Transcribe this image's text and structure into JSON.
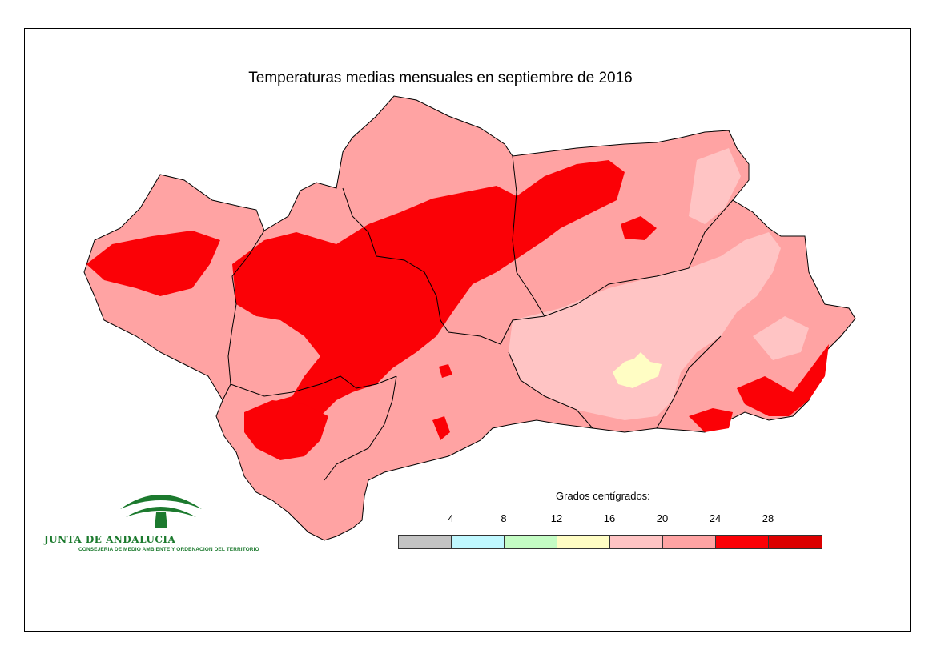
{
  "title": "Temperaturas medias mensuales en septiembre de 2016",
  "legend": {
    "title": "Grados centígrados:",
    "ticks": [
      "4",
      "8",
      "12",
      "16",
      "20",
      "24",
      "28"
    ],
    "colors": [
      "#c3c3c3",
      "#c0f8ff",
      "#c4fcc4",
      "#fffdc4",
      "#ffc4c4",
      "#ffa3a3",
      "#fb0106",
      "#dc0000"
    ]
  },
  "logo": {
    "name": "JUNTA DE ANDALUCIA",
    "subtitle": "CONSEJERIA DE MEDIO AMBIENTE Y ORDENACION DEL TERRITORIO"
  },
  "map_colors": {
    "band_20_24": "#ffa3a3",
    "band_16_20": "#ffc4c4",
    "band_12_16": "#fffdc4",
    "band_24_28": "#fb0106",
    "border": "#000000"
  }
}
